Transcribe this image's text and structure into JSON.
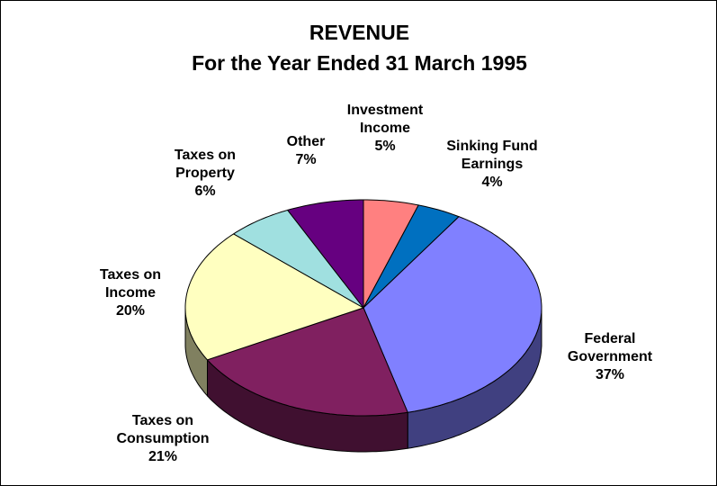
{
  "chart_data": {
    "type": "pie",
    "title": "REVENUE",
    "subtitle": "For the Year Ended 31 March 1995",
    "categories": [
      "Investment Income",
      "Sinking Fund Earnings",
      "Federal Government",
      "Taxes on Consumption",
      "Taxes on Income",
      "Taxes on Property",
      "Other"
    ],
    "values": [
      5,
      4,
      37,
      21,
      20,
      6,
      7
    ],
    "value_labels": [
      "5%",
      "4%",
      "37%",
      "21%",
      "20%",
      "6%",
      "7%"
    ],
    "colors": [
      "#ff8080",
      "#0070c0",
      "#8080ff",
      "#802060",
      "#ffffc0",
      "#a0e0e0",
      "#660080"
    ]
  }
}
